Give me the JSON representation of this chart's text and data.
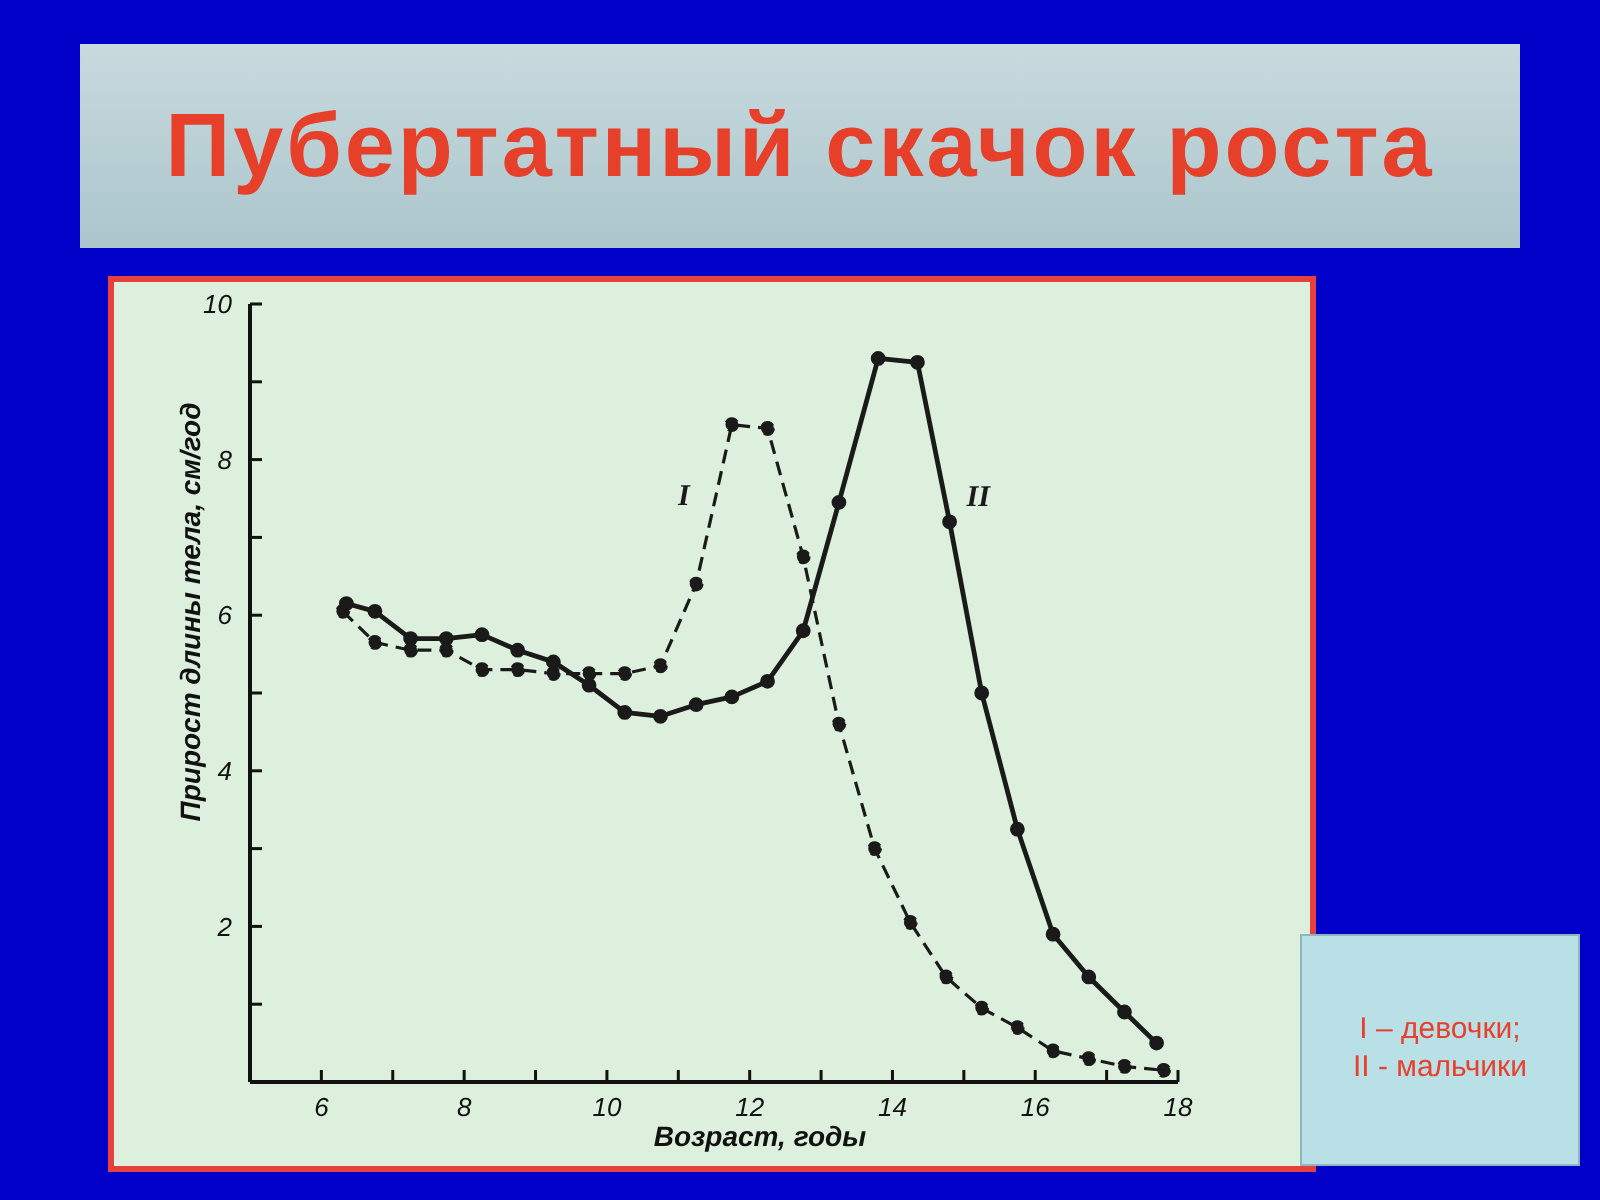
{
  "chart_data": {
    "type": "line",
    "title": "Пубертатный скачок роста",
    "xlabel": "Возраст, годы",
    "ylabel": "Прирост длины тела, см/год",
    "annotations": [
      "I – девочки;\nII - мальчики"
    ],
    "xlim": [
      5,
      18
    ],
    "xticks": [
      6,
      {
        "value": 7,
        "label": null
      },
      8,
      {
        "value": 9,
        "label": null
      },
      10,
      {
        "value": 11,
        "label": null
      },
      12,
      {
        "value": 13,
        "label": null
      },
      14,
      {
        "value": 15,
        "label": null
      },
      16,
      {
        "value": 17,
        "label": null
      },
      18
    ],
    "ylim": [
      0,
      10
    ],
    "yticks": [
      {
        "value": 1,
        "label": null
      },
      2,
      {
        "value": 3,
        "label": null
      },
      4,
      {
        "value": 5,
        "label": null
      },
      6,
      {
        "value": 7,
        "label": null
      },
      8,
      {
        "value": 9,
        "label": null
      },
      10
    ],
    "marker": "circle",
    "series": [
      {
        "name": "I",
        "color": "#1a1a1a",
        "line_style": "dashed",
        "x": [
          6.3,
          6.75,
          7.25,
          7.75,
          8.25,
          8.75,
          9.25,
          9.75,
          10.25,
          10.75,
          11.25,
          11.75,
          12.25,
          12.75,
          13.25,
          13.75,
          14.25,
          14.75,
          15.25,
          15.75,
          16.25,
          16.75,
          17.25,
          17.8
        ],
        "values": [
          6.05,
          5.65,
          5.55,
          5.55,
          5.3,
          5.3,
          5.25,
          5.25,
          5.25,
          5.35,
          6.4,
          8.45,
          8.4,
          6.75,
          4.6,
          3.0,
          2.05,
          1.35,
          0.95,
          0.7,
          0.4,
          0.3,
          0.2,
          0.15
        ]
      },
      {
        "name": "II",
        "color": "#1a1a1a",
        "line_style": "solid",
        "x": [
          6.35,
          6.75,
          7.25,
          7.75,
          8.25,
          8.75,
          9.25,
          9.75,
          10.25,
          10.75,
          11.25,
          11.75,
          12.25,
          12.75,
          13.25,
          13.8,
          14.35,
          14.8,
          15.25,
          15.75,
          16.25,
          16.75,
          17.25,
          17.7
        ],
        "values": [
          6.15,
          6.05,
          5.7,
          5.7,
          5.75,
          5.55,
          5.4,
          5.1,
          4.75,
          4.7,
          4.85,
          4.95,
          5.15,
          5.8,
          7.45,
          9.3,
          9.25,
          7.2,
          5.0,
          3.25,
          1.9,
          1.35,
          0.9,
          0.5
        ]
      }
    ]
  }
}
